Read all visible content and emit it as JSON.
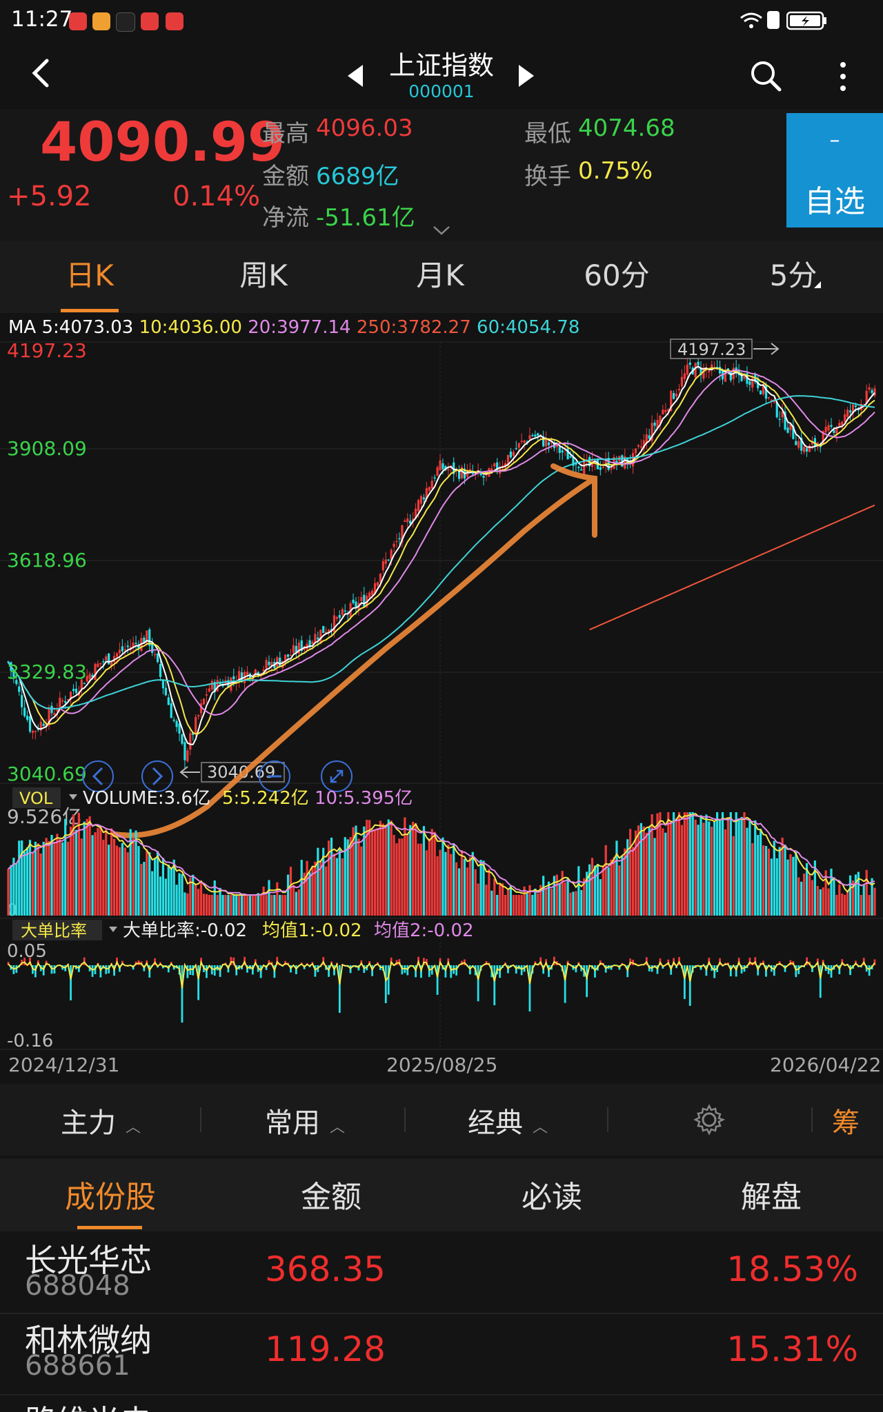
{
  "status": {
    "time": "11:27"
  },
  "nav": {
    "title": "上证指数",
    "code": "000001"
  },
  "quote": {
    "price": "4090.99",
    "change": "+5.92",
    "change_pct": "0.14%",
    "high_label": "最高",
    "high": "4096.03",
    "low_label": "最低",
    "low": "4074.68",
    "amount_label": "金额",
    "amount": "6689亿",
    "turnover_label": "换手",
    "turnover": "0.75%",
    "netflow_label": "净流",
    "netflow": "-51.61亿",
    "favorite_minus": "–",
    "favorite": "自选"
  },
  "period_tabs": [
    "日K",
    "周K",
    "月K",
    "60分",
    "5分"
  ],
  "ma": {
    "prefix": "MA",
    "ma5": "5:4073.03",
    "ma10": "10:4036.00",
    "ma20": "20:3977.14",
    "ma250": "250:3782.27",
    "ma60": "60:4054.78"
  },
  "colors": {
    "up": "#ef3a3a",
    "down": "#27e0e6",
    "accent": "#f08a2b",
    "ma5": "#ffffff",
    "ma10": "#f5e94a",
    "ma20": "#e08ae8",
    "ma250": "#f0563c",
    "ma60": "#3fd4d8"
  },
  "chart_labels": {
    "y_top": "4197.23",
    "y_mid1": "3908.09",
    "y_mid2": "3618.96",
    "y_mid3": "3329.83",
    "y_bottom": "3040.69",
    "high_marker": "4197.23",
    "low_marker": "3040.69",
    "vol_tag": "VOL",
    "vol_text": "VOLUME:3.6亿",
    "vol_ma5": "5:5.242亿",
    "vol_ma10": "10:5.395亿",
    "vol_max": "9.526亿",
    "vol_zero": "0",
    "ratio_tag": "大单比率",
    "ratio_text": "大单比率:-0.02",
    "ratio_avg1": "均值1:-0.02",
    "ratio_avg2": "均值2:-0.02",
    "ratio_top": "0.05",
    "ratio_bottom": "-0.16",
    "date_start": "2024/12/31",
    "date_mid": "2025/08/25",
    "date_end": "2026/04/22"
  },
  "chart_data": {
    "type": "candlestick",
    "x_range": [
      "2024/12/31",
      "2026/04/22"
    ],
    "y_range": [
      3040.69,
      4197.23
    ],
    "close_approx": [
      {
        "date": "2024/12/31",
        "value": 3351
      },
      {
        "date": "2025/01/13",
        "value": 3160
      },
      {
        "date": "2025/02/20",
        "value": 3350
      },
      {
        "date": "2025/03/18",
        "value": 3420
      },
      {
        "date": "2025/04/07",
        "value": 3096
      },
      {
        "date": "2025/04/20",
        "value": 3280
      },
      {
        "date": "2025/06/01",
        "value": 3360
      },
      {
        "date": "2025/07/15",
        "value": 3520
      },
      {
        "date": "2025/08/25",
        "value": 3880
      },
      {
        "date": "2025/09/20",
        "value": 3850
      },
      {
        "date": "2025/10/15",
        "value": 3970
      },
      {
        "date": "2025/11/15",
        "value": 3880
      },
      {
        "date": "2025/12/10",
        "value": 3900
      },
      {
        "date": "2026/01/10",
        "value": 4150
      },
      {
        "date": "2026/02/15",
        "value": 4120
      },
      {
        "date": "2026/03/15",
        "value": 3920
      },
      {
        "date": "2026/04/22",
        "value": 4091
      }
    ]
  },
  "toolbar": {
    "zhuli": "主力",
    "changyong": "常用",
    "jingdian": "经典",
    "chou": "筹"
  },
  "list_tabs": [
    "成份股",
    "金额",
    "必读",
    "解盘"
  ],
  "stocks": [
    {
      "name": "长光华芯",
      "code": "688048",
      "amount": "368.35",
      "pct": "18.53%"
    },
    {
      "name": "和林微纳",
      "code": "688661",
      "amount": "119.28",
      "pct": "15.31%"
    },
    {
      "name": "路维光电",
      "code": "",
      "amount": "",
      "pct": ""
    }
  ]
}
